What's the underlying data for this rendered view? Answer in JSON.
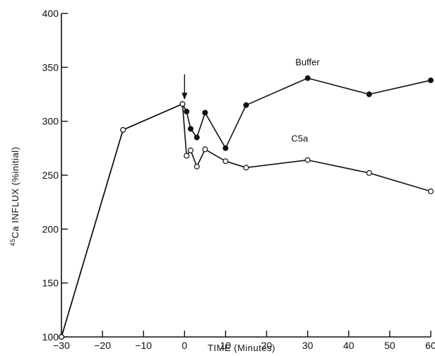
{
  "chart_data": {
    "type": "line",
    "xlabel": "TIME  (Minutes)",
    "ylabel_superscript": "45",
    "ylabel_main": "Ca  INFLUX  (%initial)",
    "xlim": [
      -30,
      60
    ],
    "ylim": [
      100,
      400
    ],
    "x_ticks": [
      -30,
      -20,
      -10,
      0,
      10,
      20,
      30,
      40,
      50,
      60
    ],
    "y_ticks": [
      100,
      150,
      200,
      250,
      300,
      350,
      400
    ],
    "grid": false,
    "annotations": [
      {
        "type": "arrow-down",
        "x": 0,
        "y": 316
      }
    ],
    "series": [
      {
        "name": "Buffer",
        "marker": "filled-circle",
        "x": [
          -30,
          -15,
          -0.5,
          0.5,
          1.5,
          3,
          5,
          10,
          15,
          30,
          45,
          60
        ],
        "y": [
          100,
          292,
          316,
          309,
          293,
          285,
          308,
          275,
          315,
          340,
          325,
          338
        ]
      },
      {
        "name": "C5a",
        "marker": "open-circle",
        "x": [
          -30,
          -15,
          -0.5,
          0.5,
          1.5,
          3,
          5,
          10,
          15,
          30,
          45,
          60
        ],
        "y": [
          100,
          292,
          316,
          268,
          273,
          258,
          274,
          263,
          257,
          264,
          252,
          235
        ]
      }
    ]
  }
}
